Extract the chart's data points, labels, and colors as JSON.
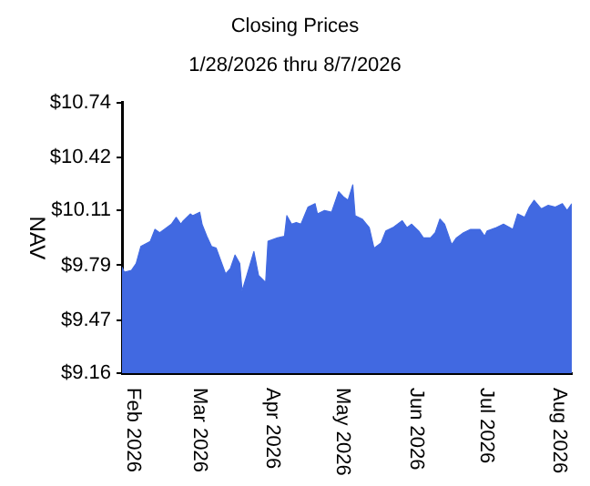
{
  "chart_data": {
    "type": "area",
    "title": "Closing Prices",
    "subtitle": "1/28/2026 thru 8/7/2026",
    "ylabel": "NAV",
    "x": [
      "2026-01-28",
      "2026-01-29",
      "2026-02-01",
      "2026-02-03",
      "2026-02-05",
      "2026-02-09",
      "2026-02-11",
      "2026-02-13",
      "2026-02-15",
      "2026-02-18",
      "2026-02-20",
      "2026-02-22",
      "2026-02-23",
      "2026-02-26",
      "2026-02-27",
      "2026-03-02",
      "2026-03-03",
      "2026-03-05",
      "2026-03-07",
      "2026-03-09",
      "2026-03-13",
      "2026-03-15",
      "2026-03-17",
      "2026-03-19",
      "2026-03-20",
      "2026-03-22",
      "2026-03-25",
      "2026-03-27",
      "2026-03-30",
      "2026-03-31",
      "2026-04-04",
      "2026-04-07",
      "2026-04-08",
      "2026-04-10",
      "2026-04-12",
      "2026-04-14",
      "2026-04-17",
      "2026-04-20",
      "2026-04-21",
      "2026-04-24",
      "2026-04-27",
      "2026-04-30",
      "2026-05-02",
      "2026-05-04",
      "2026-05-06",
      "2026-05-07",
      "2026-05-10",
      "2026-05-13",
      "2026-05-15",
      "2026-05-18",
      "2026-05-20",
      "2026-05-23",
      "2026-05-27",
      "2026-05-29",
      "2026-05-31",
      "2026-06-03",
      "2026-06-05",
      "2026-06-08",
      "2026-06-10",
      "2026-06-12",
      "2026-06-14",
      "2026-06-17",
      "2026-06-19",
      "2026-06-22",
      "2026-06-25",
      "2026-06-29",
      "2026-07-01",
      "2026-07-02",
      "2026-07-06",
      "2026-07-09",
      "2026-07-13",
      "2026-07-15",
      "2026-07-18",
      "2026-07-20",
      "2026-07-22",
      "2026-07-25",
      "2026-07-28",
      "2026-07-31",
      "2026-08-03",
      "2026-08-05",
      "2026-08-07"
    ],
    "series": [
      {
        "color": "#4169e1",
        "values": [
          9.78,
          9.75,
          9.76,
          9.8,
          9.9,
          9.93,
          10.0,
          9.98,
          10.0,
          10.03,
          10.07,
          10.03,
          10.05,
          10.09,
          10.08,
          10.1,
          10.03,
          9.96,
          9.9,
          9.89,
          9.74,
          9.77,
          9.85,
          9.8,
          9.64,
          9.73,
          9.87,
          9.73,
          9.69,
          9.93,
          9.95,
          9.96,
          10.08,
          10.03,
          10.04,
          10.03,
          10.13,
          10.15,
          10.09,
          10.11,
          10.1,
          10.22,
          10.19,
          10.17,
          10.26,
          10.08,
          10.06,
          10.01,
          9.89,
          9.92,
          9.99,
          10.01,
          10.05,
          10.01,
          10.03,
          9.99,
          9.95,
          9.95,
          9.98,
          10.06,
          10.03,
          9.91,
          9.95,
          9.98,
          10.0,
          10.0,
          9.96,
          9.99,
          10.01,
          10.03,
          10.0,
          10.09,
          10.07,
          10.13,
          10.17,
          10.12,
          10.14,
          10.13,
          10.15,
          10.11,
          10.15
        ]
      }
    ],
    "xlim": [
      "2026-01-28",
      "2026-08-07"
    ],
    "xticks": [
      {
        "value": "2026-02-01",
        "label": "Feb 2026"
      },
      {
        "value": "2026-03-01",
        "label": "Mar 2026"
      },
      {
        "value": "2026-04-01",
        "label": "Apr 2026"
      },
      {
        "value": "2026-05-01",
        "label": "May 2026"
      },
      {
        "value": "2026-06-01",
        "label": "Jun 2026"
      },
      {
        "value": "2026-07-01",
        "label": "Jul 2026"
      },
      {
        "value": "2026-08-01",
        "label": "Aug 2026"
      }
    ],
    "ylim": [
      9.16,
      10.74
    ],
    "yticks": [
      {
        "value": 9.16,
        "label": "$9.16"
      },
      {
        "value": 9.47,
        "label": "$9.47"
      },
      {
        "value": 9.79,
        "label": "$9.79"
      },
      {
        "value": 10.11,
        "label": "$10.11"
      },
      {
        "value": 10.42,
        "label": "$10.42"
      },
      {
        "value": 10.74,
        "label": "$10.74"
      }
    ],
    "grid": false,
    "legend": false
  }
}
